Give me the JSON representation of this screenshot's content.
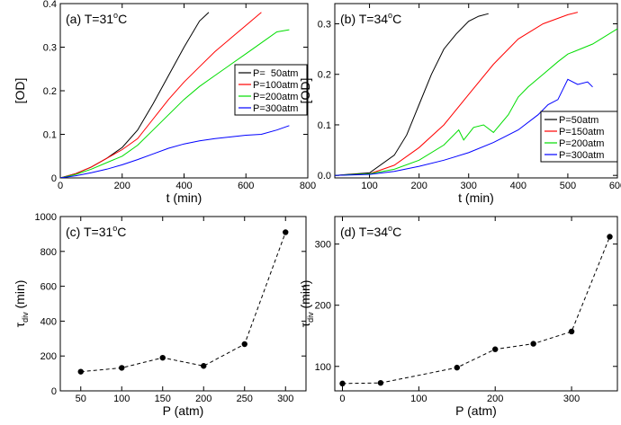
{
  "chart_data": [
    {
      "type": "line",
      "panel": "(a)",
      "title_prefix": "T=31",
      "title_sup": "o",
      "title_suffix": "C",
      "xlabel": "t (min)",
      "ylabel": "[OD]",
      "xlim": [
        0,
        800
      ],
      "ylim": [
        0,
        0.4
      ],
      "xticks": [
        0,
        200,
        400,
        600,
        800
      ],
      "yticks": [
        0,
        0.1,
        0.2,
        0.3,
        0.4
      ],
      "xtick_labels": [
        "0",
        "200",
        "400",
        "600",
        "800"
      ],
      "ytick_labels": [
        "0",
        "0.1",
        "0.2",
        "0.3",
        "0.4"
      ],
      "legend_position": "center-right",
      "series": [
        {
          "name": "P=  50atm",
          "color": "#000000",
          "x": [
            0,
            50,
            100,
            150,
            200,
            250,
            300,
            350,
            400,
            450,
            480
          ],
          "y": [
            0,
            0.01,
            0.025,
            0.045,
            0.07,
            0.11,
            0.17,
            0.235,
            0.3,
            0.36,
            0.38
          ]
        },
        {
          "name": "P=100atm",
          "color": "#ff0000",
          "x": [
            0,
            50,
            100,
            150,
            200,
            250,
            300,
            350,
            400,
            450,
            500,
            550,
            600,
            650
          ],
          "y": [
            0,
            0.01,
            0.025,
            0.045,
            0.065,
            0.09,
            0.135,
            0.18,
            0.22,
            0.255,
            0.29,
            0.32,
            0.35,
            0.38
          ]
        },
        {
          "name": "P=200atm",
          "color": "#00dd00",
          "x": [
            0,
            50,
            100,
            150,
            200,
            250,
            300,
            350,
            400,
            450,
            500,
            550,
            600,
            650,
            700,
            740
          ],
          "y": [
            0,
            0.008,
            0.02,
            0.035,
            0.05,
            0.075,
            0.11,
            0.145,
            0.18,
            0.21,
            0.235,
            0.26,
            0.285,
            0.31,
            0.335,
            0.34
          ]
        },
        {
          "name": "P=300atm",
          "color": "#0000ff",
          "x": [
            0,
            50,
            100,
            150,
            200,
            250,
            300,
            350,
            400,
            450,
            500,
            550,
            600,
            650,
            700,
            740
          ],
          "y": [
            0,
            0.005,
            0.012,
            0.02,
            0.03,
            0.042,
            0.055,
            0.068,
            0.078,
            0.085,
            0.09,
            0.094,
            0.098,
            0.1,
            0.11,
            0.12
          ]
        }
      ]
    },
    {
      "type": "line",
      "panel": "(b)",
      "title_prefix": "T=34",
      "title_sup": "o",
      "title_suffix": "C",
      "xlabel": "t (min)",
      "ylabel": "[OD]",
      "xlim": [
        30,
        600
      ],
      "ylim": [
        -0.005,
        0.34
      ],
      "xticks": [
        100,
        200,
        300,
        400,
        500,
        600
      ],
      "yticks": [
        0,
        0.1,
        0.2,
        0.3
      ],
      "xtick_labels": [
        "100",
        "200",
        "300",
        "400",
        "500",
        "600"
      ],
      "ytick_labels": [
        "0.0",
        "0.1",
        "0.2",
        "0.3"
      ],
      "legend_position": "bottom-right",
      "series": [
        {
          "name": "P=50atm",
          "color": "#000000",
          "x": [
            30,
            100,
            150,
            175,
            200,
            225,
            250,
            275,
            300,
            320,
            340
          ],
          "y": [
            0,
            0.005,
            0.04,
            0.08,
            0.14,
            0.2,
            0.25,
            0.28,
            0.305,
            0.315,
            0.32
          ]
        },
        {
          "name": "P=150atm",
          "color": "#ff0000",
          "x": [
            30,
            100,
            150,
            200,
            250,
            300,
            350,
            400,
            450,
            500,
            520
          ],
          "y": [
            0,
            0.003,
            0.02,
            0.055,
            0.1,
            0.16,
            0.22,
            0.27,
            0.3,
            0.318,
            0.323
          ]
        },
        {
          "name": "P=200atm",
          "color": "#00dd00",
          "x": [
            30,
            100,
            150,
            200,
            250,
            280,
            290,
            310,
            330,
            350,
            380,
            400,
            420,
            450,
            480,
            500,
            550,
            600
          ],
          "y": [
            0,
            0.003,
            0.012,
            0.03,
            0.06,
            0.09,
            0.07,
            0.095,
            0.1,
            0.085,
            0.12,
            0.155,
            0.175,
            0.2,
            0.225,
            0.24,
            0.26,
            0.29
          ]
        },
        {
          "name": "P=300atm",
          "color": "#0000ff",
          "x": [
            30,
            100,
            150,
            200,
            250,
            300,
            350,
            400,
            440,
            460,
            480,
            500,
            520,
            540,
            550
          ],
          "y": [
            0,
            0.002,
            0.008,
            0.018,
            0.03,
            0.045,
            0.065,
            0.09,
            0.12,
            0.14,
            0.15,
            0.19,
            0.18,
            0.185,
            0.175
          ]
        }
      ]
    },
    {
      "type": "scatter",
      "panel": "(c)",
      "title_prefix": "T=31",
      "title_sup": "o",
      "title_suffix": "C",
      "xlabel": "P (atm)",
      "ylabel_main": "τ",
      "ylabel_sub": "div",
      "ylabel_unit": " (min)",
      "xlim": [
        25,
        325
      ],
      "ylim": [
        0,
        1000
      ],
      "xticks": [
        50,
        100,
        150,
        200,
        250,
        300
      ],
      "yticks": [
        0,
        200,
        400,
        600,
        800,
        1000
      ],
      "xtick_labels": [
        "50",
        "100",
        "150",
        "200",
        "250",
        "300"
      ],
      "ytick_labels": [
        "0",
        "200",
        "400",
        "600",
        "800",
        "1000"
      ],
      "line_style": "dashed",
      "series": [
        {
          "x": [
            50,
            100,
            150,
            200,
            250,
            300
          ],
          "y": [
            110,
            132,
            190,
            143,
            268,
            910
          ]
        }
      ]
    },
    {
      "type": "scatter",
      "panel": "(d)",
      "title_prefix": "T=34",
      "title_sup": "o",
      "title_suffix": "C",
      "xlabel": "P (atm)",
      "ylabel_main": "τ",
      "ylabel_sub": "div",
      "ylabel_unit": " (min)",
      "xlim": [
        -10,
        360
      ],
      "ylim": [
        60,
        345
      ],
      "xticks": [
        0,
        100,
        200,
        300
      ],
      "yticks": [
        100,
        200,
        300
      ],
      "xtick_labels": [
        "0",
        "100",
        "200",
        "300"
      ],
      "ytick_labels": [
        "100",
        "200",
        "300"
      ],
      "line_style": "dashed",
      "series": [
        {
          "x": [
            0,
            50,
            150,
            200,
            250,
            300,
            350
          ],
          "y": [
            72,
            73,
            98,
            128,
            137,
            157,
            312
          ]
        }
      ]
    }
  ]
}
